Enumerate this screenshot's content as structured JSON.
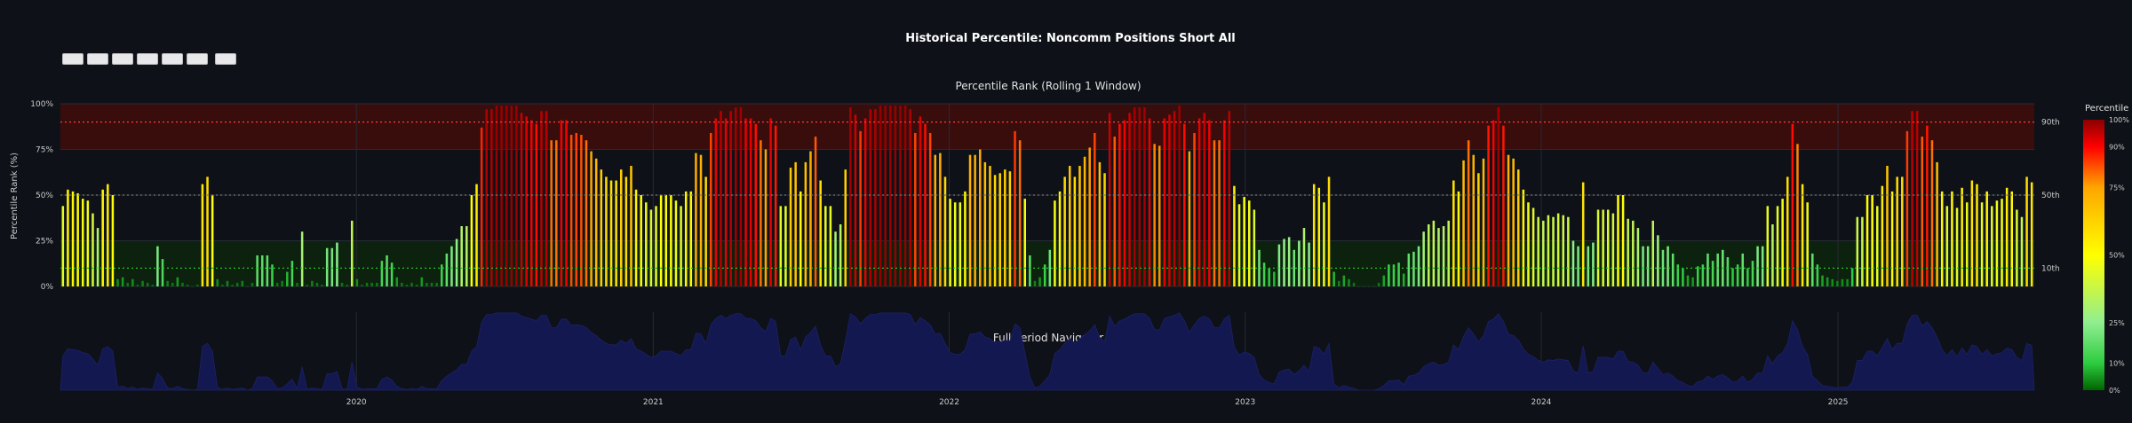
{
  "toolbar": {
    "button_count": 7
  },
  "chart_data": {
    "type": "bar",
    "title": "Historical Percentile: Noncomm Positions Short All",
    "subplot_titles": [
      "Percentile Rank (Rolling 1 Window)",
      "Full Period Navigator"
    ],
    "ylabel": "Percentile Rank (%)",
    "ylim": [
      0,
      100
    ],
    "yticks": [
      "0%",
      "25%",
      "50%",
      "75%",
      "100%"
    ],
    "x_ticks": [
      "2020",
      "2021",
      "2022",
      "2023",
      "2024",
      "2025"
    ],
    "x_range": [
      "2019-01-01",
      "2025-08-31"
    ],
    "reference_lines": [
      {
        "label": "90th",
        "value": 90,
        "color": "#ff3b3b",
        "style": "dotted"
      },
      {
        "label": "50th",
        "value": 50,
        "color": "#777777",
        "style": "dotted"
      },
      {
        "label": "10th",
        "value": 10,
        "color": "#22c022",
        "style": "dotted"
      }
    ],
    "zones": [
      {
        "from": 75,
        "to": 100,
        "color": "#3a0d0d"
      },
      {
        "from": 0,
        "to": 25,
        "color": "#0c220f"
      }
    ],
    "colorbar": {
      "title": "Percentile",
      "ticks": [
        "0%",
        "10%",
        "25%",
        "50%",
        "75%",
        "90%",
        "100%"
      ],
      "colors": [
        "#006400",
        "#2ecc40",
        "#90ee90",
        "#ffff00",
        "#ffa500",
        "#ff0000",
        "#8b0000"
      ]
    },
    "navigator_fill": "#141850",
    "values": [
      44,
      53,
      52,
      51,
      48,
      47,
      40,
      32,
      53,
      56,
      50,
      4,
      5,
      2,
      4,
      1,
      3,
      2,
      1,
      22,
      15,
      3,
      2,
      5,
      2,
      1,
      0,
      1,
      56,
      60,
      50,
      4,
      1,
      3,
      1,
      2,
      3,
      0,
      2,
      17,
      17,
      17,
      12,
      2,
      3,
      8,
      14,
      2,
      30,
      1,
      3,
      2,
      1,
      21,
      21,
      24,
      2,
      1,
      36,
      4,
      1,
      2,
      2,
      2,
      14,
      17,
      13,
      5,
      2,
      1,
      2,
      1,
      5,
      2,
      2,
      2,
      12,
      18,
      22,
      26,
      33,
      33,
      50,
      56,
      87,
      97,
      97,
      99,
      99,
      99,
      99,
      99,
      95,
      93,
      91,
      89,
      96,
      96,
      80,
      80,
      91,
      91,
      83,
      84,
      83,
      80,
      74,
      70,
      64,
      60,
      58,
      58,
      64,
      60,
      66,
      53,
      50,
      46,
      42,
      44,
      50,
      50,
      50,
      47,
      44,
      52,
      52,
      73,
      72,
      60,
      84,
      92,
      96,
      92,
      96,
      98,
      98,
      92,
      92,
      89,
      80,
      75,
      92,
      88,
      44,
      44,
      65,
      68,
      52,
      68,
      74,
      82,
      58,
      44,
      44,
      30,
      34,
      64,
      98,
      94,
      85,
      92,
      97,
      97,
      99,
      99,
      99,
      99,
      99,
      99,
      97,
      84,
      93,
      89,
      84,
      72,
      73,
      60,
      48,
      46,
      46,
      52,
      72,
      72,
      75,
      68,
      66,
      61,
      62,
      64,
      63,
      85,
      80,
      48,
      17,
      3,
      5,
      12,
      20,
      47,
      52,
      60,
      66,
      60,
      66,
      71,
      76,
      84,
      68,
      62,
      95,
      82,
      89,
      91,
      95,
      98,
      98,
      98,
      92,
      78,
      77,
      92,
      94,
      96,
      99,
      89,
      74,
      84,
      92,
      95,
      91,
      80,
      80,
      91,
      96,
      55,
      45,
      49,
      47,
      42,
      20,
      13,
      10,
      8,
      23,
      26,
      27,
      20,
      25,
      32,
      24,
      56,
      54,
      46,
      60,
      8,
      3,
      6,
      4,
      2,
      0,
      0,
      0,
      0,
      2,
      6,
      12,
      12,
      13,
      7,
      18,
      19,
      22,
      30,
      34,
      36,
      32,
      33,
      36,
      58,
      52,
      69,
      80,
      72,
      62,
      70,
      88,
      91,
      98,
      88,
      72,
      70,
      64,
      53,
      46,
      43,
      38,
      36,
      39,
      38,
      40,
      39,
      38,
      25,
      22,
      57,
      22,
      24,
      42,
      42,
      42,
      40,
      50,
      50,
      37,
      36,
      32,
      22,
      22,
      36,
      28,
      20,
      22,
      18,
      12,
      10,
      6,
      5,
      11,
      12,
      18,
      14,
      18,
      20,
      16,
      10,
      12,
      18,
      10,
      14,
      22,
      22,
      44,
      34,
      44,
      48,
      60,
      89,
      78,
      56,
      46,
      18,
      12,
      6,
      5,
      4,
      3,
      4,
      4,
      10,
      38,
      38,
      50,
      50,
      44,
      55,
      66,
      52,
      60,
      60,
      85,
      96,
      96,
      82,
      88,
      80,
      68,
      52,
      44,
      52,
      43,
      54,
      46,
      58,
      56,
      46,
      52,
      44,
      47,
      48,
      54,
      52,
      42,
      38,
      60,
      57
    ]
  }
}
